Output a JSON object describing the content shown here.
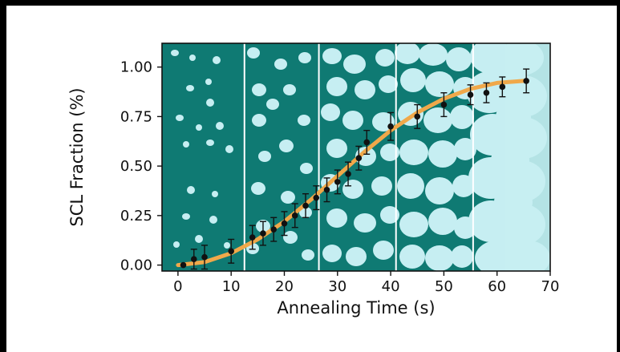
{
  "chart_data": {
    "type": "scatter",
    "xlabel": "Annealing Time (s)",
    "ylabel": "SCL Fraction (%)",
    "xlim": [
      -3,
      70
    ],
    "ylim": [
      -0.03,
      1.12
    ],
    "xticks": [
      0,
      10,
      20,
      30,
      40,
      50,
      60,
      70
    ],
    "yticks": [
      0.0,
      0.25,
      0.5,
      0.75,
      1.0
    ],
    "xtick_labels": [
      "0",
      "10",
      "20",
      "30",
      "40",
      "50",
      "60",
      "70"
    ],
    "ytick_labels": [
      "0.00",
      "0.25",
      "0.50",
      "0.75",
      "1.00"
    ],
    "grid": false,
    "background_color": "#0f7a73",
    "crystal_color": "#c6eef2",
    "fit_color": "#f0a84a",
    "panel_dividers_x": [
      12.5,
      26.5,
      41,
      55.5
    ],
    "series": [
      {
        "type": "scatter-errorbar",
        "x": [
          1,
          3,
          5,
          10,
          14,
          16,
          18,
          20,
          22,
          24,
          26,
          28,
          30,
          32,
          34,
          35.5,
          40,
          45,
          50,
          55,
          58,
          61,
          65.5
        ],
        "y": [
          0.0,
          0.03,
          0.04,
          0.07,
          0.14,
          0.16,
          0.18,
          0.21,
          0.25,
          0.3,
          0.34,
          0.38,
          0.42,
          0.46,
          0.54,
          0.62,
          0.7,
          0.75,
          0.81,
          0.86,
          0.87,
          0.9,
          0.93
        ],
        "yerr": [
          0.0,
          0.05,
          0.06,
          0.06,
          0.06,
          0.06,
          0.06,
          0.06,
          0.06,
          0.06,
          0.06,
          0.06,
          0.06,
          0.06,
          0.06,
          0.06,
          0.07,
          0.06,
          0.06,
          0.05,
          0.05,
          0.05,
          0.06
        ]
      },
      {
        "type": "fit-line",
        "x": [
          0,
          5,
          10,
          15,
          20,
          25,
          30,
          35,
          40,
          45,
          50,
          55,
          60,
          65
        ],
        "y": [
          0.0,
          0.015,
          0.06,
          0.13,
          0.22,
          0.33,
          0.45,
          0.57,
          0.68,
          0.77,
          0.84,
          0.89,
          0.92,
          0.93
        ]
      }
    ]
  }
}
